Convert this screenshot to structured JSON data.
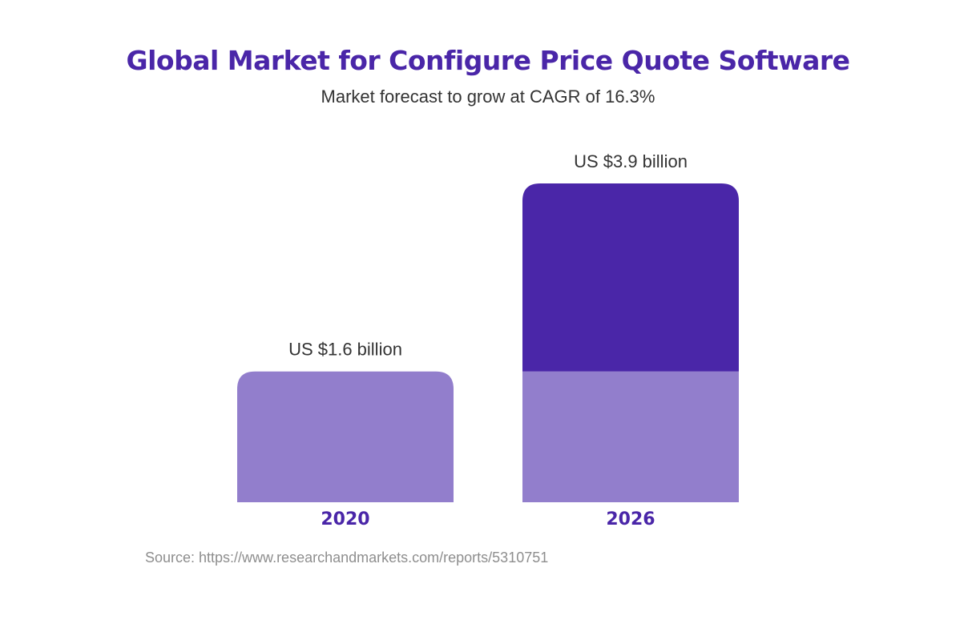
{
  "title": "Global Market for Configure Price Quote Software",
  "subtitle": "Market forecast to grow at CAGR of 16.3%",
  "source": "Source: https://www.researchandmarkets.com/reports/5310751",
  "colors": {
    "base": "#927ecc",
    "growth": "#4a26a8",
    "title": "#4a26a8",
    "label": "#333333",
    "category": "#4a26a8",
    "source": "#8e8e8e"
  },
  "chart_data": {
    "type": "bar",
    "title": "Global Market for Configure Price Quote Software",
    "subtitle": "Market forecast to grow at CAGR of 16.3%",
    "categories": [
      "2020",
      "2026"
    ],
    "values": [
      1.6,
      3.9
    ],
    "unit": "US$ billion",
    "data_labels": [
      "US $1.6 billion",
      "US $3.9 billion"
    ],
    "stacked_base_value": 1.6,
    "ylim": [
      0,
      3.9
    ],
    "grid": false,
    "legend": "none"
  }
}
